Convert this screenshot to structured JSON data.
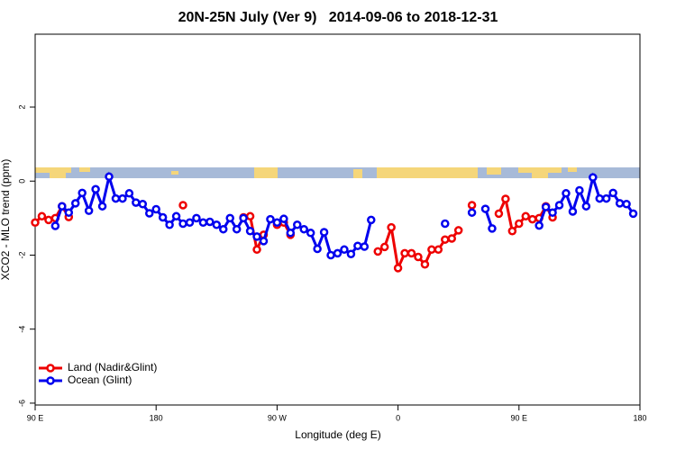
{
  "chart_data": {
    "type": "line",
    "title": "20N-25N July (Ver 9)   2014-09-06 to 2018-12-31",
    "x_label": "Longitude (deg E)",
    "y_label": "XCO2 - MLO trend (ppm)",
    "x": [
      90,
      95,
      100,
      105,
      110,
      115,
      120,
      125,
      130,
      135,
      140,
      145,
      150,
      155,
      160,
      165,
      170,
      175,
      180,
      185,
      190,
      195,
      200,
      205,
      210,
      215,
      220,
      225,
      230,
      235,
      240,
      245,
      250,
      255,
      260,
      265,
      270,
      275,
      280,
      285,
      290,
      295,
      300,
      305,
      310,
      315,
      320,
      325,
      330,
      335,
      340,
      345,
      350,
      355,
      360,
      365,
      370,
      375,
      380,
      385,
      390,
      395,
      400,
      405,
      410,
      415,
      420,
      425,
      430,
      435,
      440,
      445,
      450,
      455,
      460,
      465,
      470,
      475,
      480,
      485,
      490,
      495,
      500,
      505,
      510,
      515,
      520,
      525,
      530,
      535,
      540
    ],
    "xlim": [
      90,
      540
    ],
    "xticks": [
      {
        "value": 90,
        "label": "90 E"
      },
      180,
      {
        "value": 270,
        "label": "90 W"
      },
      {
        "value": 360,
        "label": "0"
      },
      {
        "value": 450,
        "label": "90 E"
      },
      {
        "value": 540,
        "label": "180"
      }
    ],
    "ylim": [
      -6.05,
      3.97
    ],
    "yticks": [
      -6,
      -4,
      -2,
      0,
      2
    ],
    "legend": "bottomleft",
    "series": [
      {
        "name": "Land (Nadir&Glint)",
        "color": "#ee0000",
        "values": [
          -1.12,
          -0.95,
          -1.05,
          -1.0,
          -0.68,
          -0.97,
          null,
          null,
          null,
          null,
          null,
          null,
          null,
          null,
          null,
          null,
          null,
          null,
          null,
          null,
          null,
          null,
          -0.65,
          null,
          null,
          null,
          null,
          null,
          null,
          null,
          null,
          -0.98,
          -0.95,
          -1.85,
          -1.45,
          null,
          -1.18,
          -1.12,
          -1.45,
          null,
          null,
          null,
          null,
          null,
          null,
          null,
          null,
          null,
          null,
          null,
          null,
          -1.9,
          -1.78,
          -1.25,
          -2.35,
          -1.95,
          -1.95,
          -2.05,
          -2.25,
          -1.85,
          -1.85,
          -1.58,
          -1.55,
          -1.33,
          null,
          -0.65,
          null,
          null,
          null,
          -0.88,
          -0.48,
          -1.35,
          -1.15,
          -0.95,
          -1.03,
          -1.0,
          -0.68,
          -0.98,
          null,
          null,
          null,
          null,
          null,
          null,
          null,
          null,
          null,
          null,
          null,
          null,
          null
        ]
      },
      {
        "name": "Ocean (Glint)",
        "color": "#0000ee",
        "values": [
          null,
          null,
          null,
          -1.21,
          -0.68,
          -0.85,
          -0.6,
          -0.32,
          -0.8,
          -0.22,
          -0.68,
          0.12,
          -0.47,
          -0.47,
          -0.33,
          -0.58,
          -0.62,
          -0.87,
          -0.76,
          -0.98,
          -1.18,
          -0.95,
          -1.15,
          -1.12,
          -1.0,
          -1.12,
          -1.1,
          -1.18,
          -1.3,
          -1.0,
          -1.3,
          -1.0,
          -1.35,
          -1.5,
          -1.62,
          -1.03,
          -1.12,
          -1.02,
          -1.4,
          -1.18,
          -1.3,
          -1.4,
          -1.83,
          -1.38,
          -2.0,
          -1.95,
          -1.85,
          -1.97,
          -1.75,
          -1.77,
          -1.05,
          null,
          null,
          null,
          null,
          null,
          null,
          null,
          null,
          null,
          null,
          -1.15,
          null,
          null,
          null,
          -0.85,
          null,
          -0.75,
          -1.28,
          null,
          null,
          null,
          null,
          null,
          null,
          -1.2,
          -0.7,
          -0.85,
          -0.65,
          -0.33,
          -0.82,
          -0.25,
          -0.68,
          0.1,
          -0.47,
          -0.47,
          -0.32,
          -0.6,
          -0.62,
          -0.88,
          null
        ]
      }
    ]
  }
}
